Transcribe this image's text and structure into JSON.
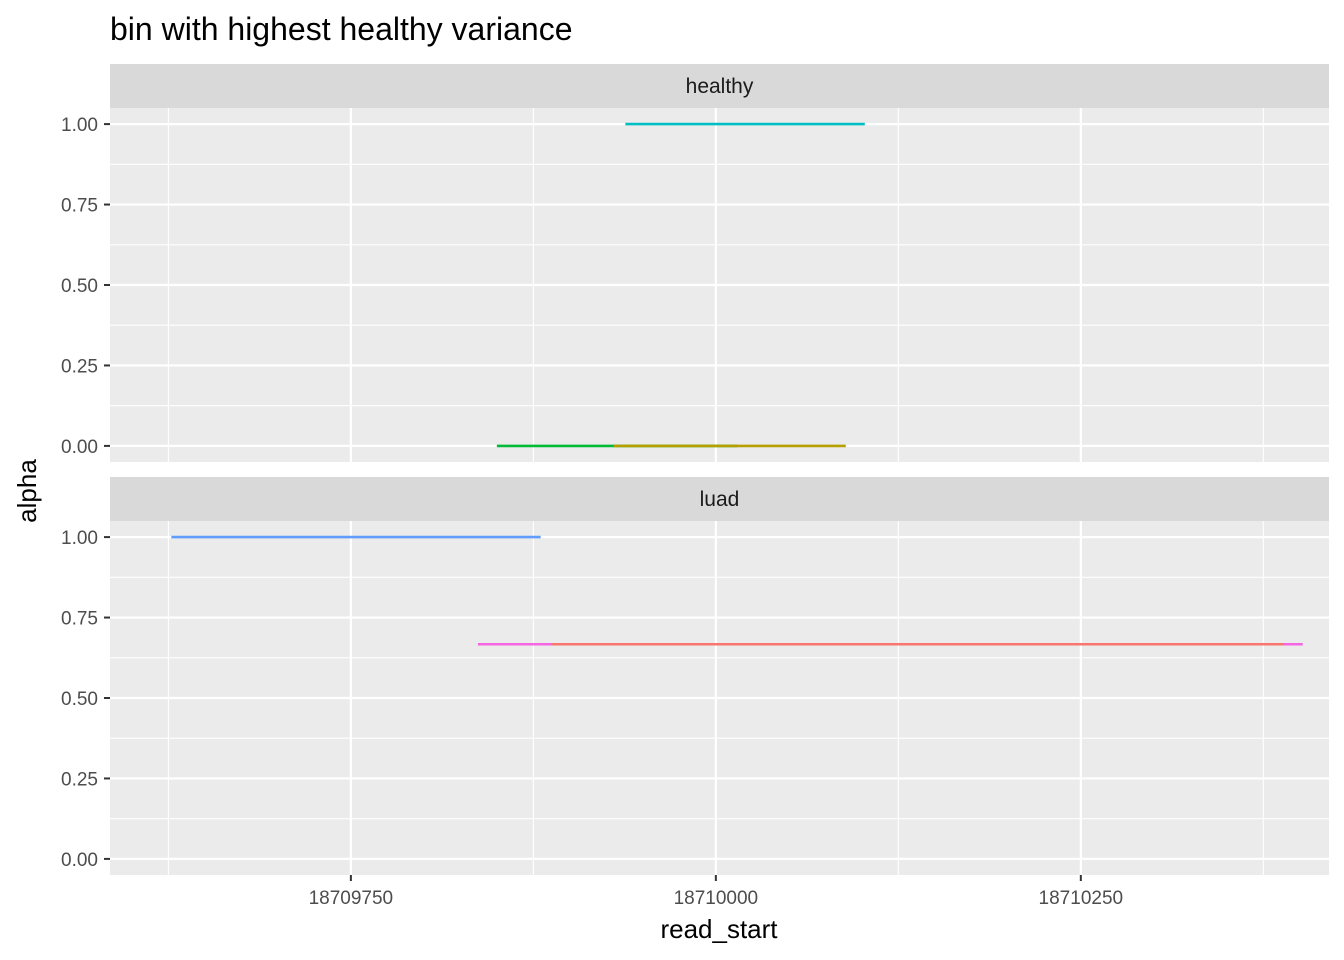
{
  "chart_data": {
    "type": "line",
    "subtype": "faceted-segments",
    "title": "bin with highest healthy variance",
    "xlabel": "read_start",
    "ylabel": "alpha",
    "xlim": [
      18709585,
      18710420
    ],
    "ylim": [
      -0.05,
      1.05
    ],
    "x_ticks": [
      18709750,
      18710000,
      18710250
    ],
    "x_tick_labels": [
      "18709750",
      "18710000",
      "18710250"
    ],
    "y_ticks": [
      0,
      0.25,
      0.5,
      0.75,
      1
    ],
    "y_tick_labels": [
      "0.00",
      "0.25",
      "0.50",
      "0.75",
      "1.00"
    ],
    "grid": true,
    "legend": "none",
    "panels": [
      {
        "name": "healthy",
        "label": "healthy",
        "segments": [
          {
            "x_start": 18709938,
            "x_end": 18710102,
            "y": 1.0,
            "color": "#00BFC4"
          },
          {
            "x_start": 18709850,
            "x_end": 18710015,
            "y": 0.0,
            "color": "#00BA38"
          },
          {
            "x_start": 18709930,
            "x_end": 18710089,
            "y": 0.0,
            "color": "#B79F00"
          }
        ]
      },
      {
        "name": "luad",
        "label": "luad",
        "segments": [
          {
            "x_start": 18709627,
            "x_end": 18709880,
            "y": 1.0,
            "color": "#619CFF"
          },
          {
            "x_start": 18709837,
            "x_end": 18710402,
            "y": 0.667,
            "color": "#F564E3"
          },
          {
            "x_start": 18709887,
            "x_end": 18710389,
            "y": 0.667,
            "color": "#F8766D"
          }
        ]
      }
    ]
  }
}
